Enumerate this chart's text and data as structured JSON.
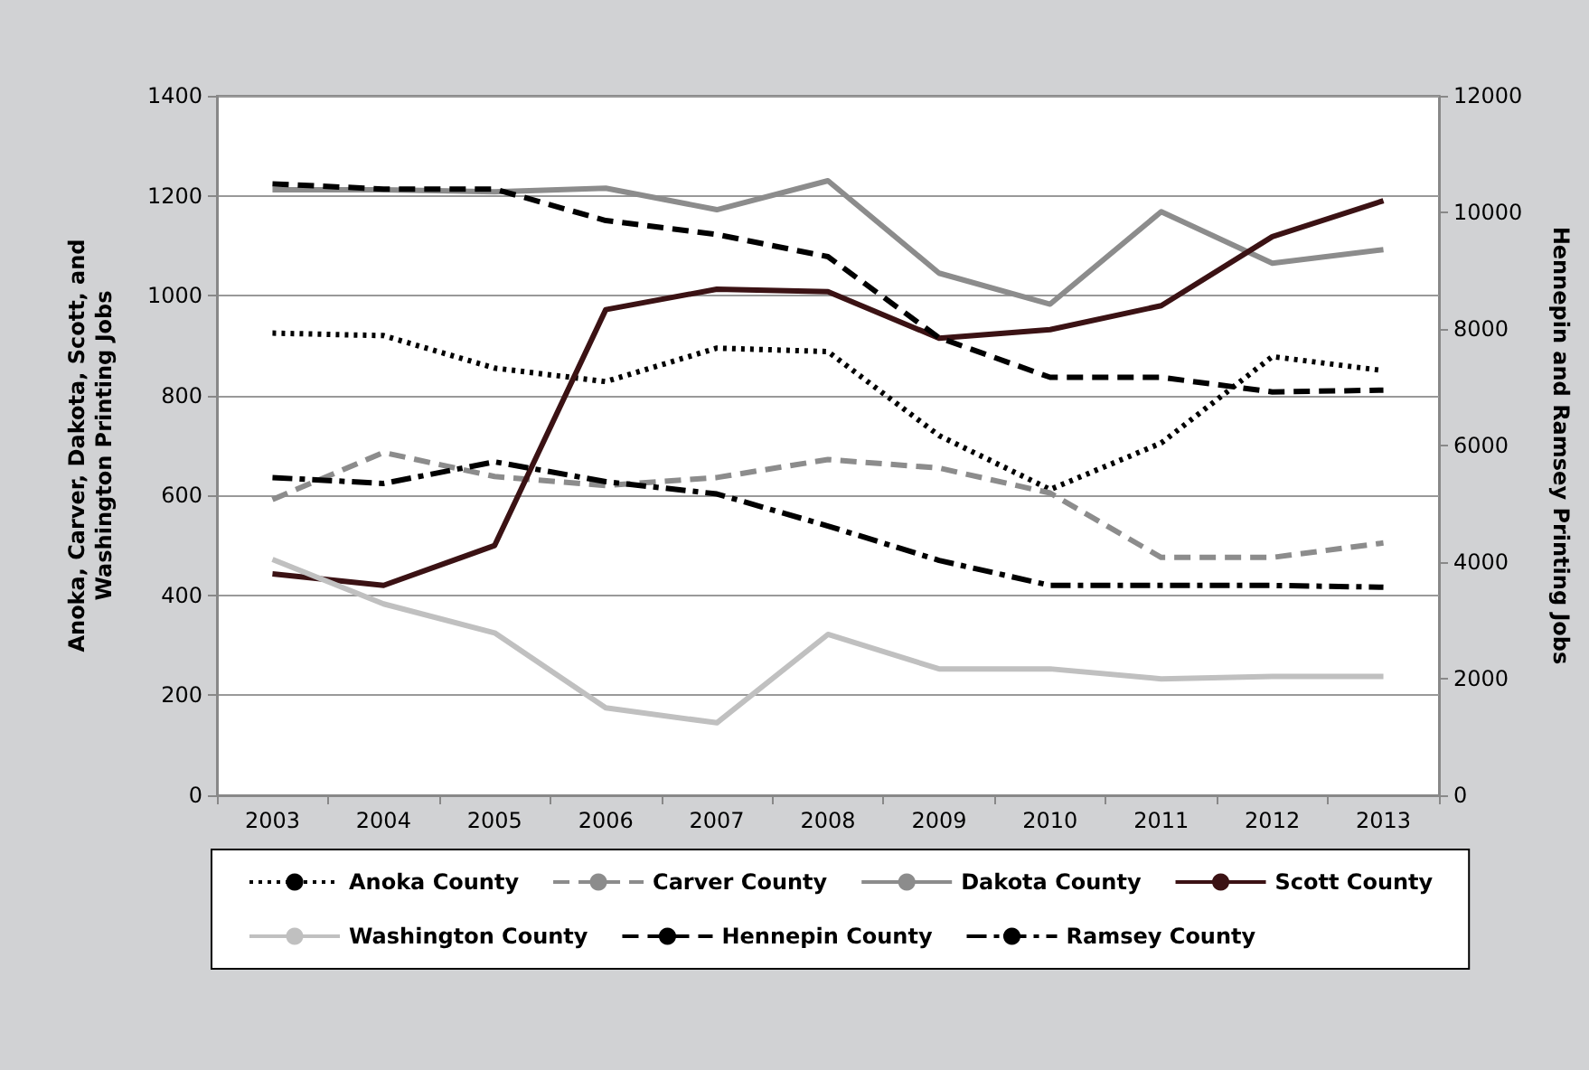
{
  "chart_data": {
    "type": "line",
    "ylabel": "Anoka, Carver, Dakota, Scott, and\nWashington Printing Jobs",
    "y2label": "Hennepin and Ramsey Printing Jobs",
    "categories": [
      "2003",
      "2004",
      "2005",
      "2006",
      "2007",
      "2008",
      "2009",
      "2010",
      "2011",
      "2012",
      "2013"
    ],
    "series": [
      {
        "name": "Anoka County",
        "color": "#000000",
        "line_style": "dotted",
        "values": [
          925,
          920,
          855,
          828,
          895,
          888,
          720,
          612,
          705,
          878,
          850
        ]
      },
      {
        "name": "Carver County",
        "color": "#8c8c8c",
        "line_style": "dashed",
        "values": [
          592,
          686,
          638,
          620,
          636,
          672,
          655,
          605,
          476,
          476,
          505
        ]
      },
      {
        "name": "Dakota County",
        "color": "#8c8c8c",
        "line_style": "solid",
        "values": [
          1212,
          1212,
          1208,
          1215,
          1172,
          1230,
          1045,
          983,
          1168,
          1065,
          1092
        ]
      },
      {
        "name": "Scott County",
        "color": "#3b1214",
        "line_style": "solid",
        "values": [
          443,
          420,
          500,
          972,
          1013,
          1008,
          915,
          932,
          980,
          1118,
          1190
        ]
      },
      {
        "name": "Washington County",
        "color": "#c0c0c0",
        "line_style": "solid",
        "values": [
          472,
          383,
          325,
          175,
          145,
          322,
          253,
          253,
          233,
          238,
          238
        ]
      },
      {
        "name": "Hennepin County",
        "color": "#000000",
        "line_style": "dashed",
        "axis": "y2",
        "values": [
          10490,
          10400,
          10400,
          9860,
          9620,
          9240,
          7850,
          7170,
          7170,
          6920,
          6950
        ]
      },
      {
        "name": "Ramsey County",
        "color": "#000000",
        "line_style": "dashdot",
        "axis": "y2",
        "values": [
          5450,
          5350,
          5720,
          5380,
          5170,
          4620,
          4030,
          3600,
          3600,
          3600,
          3570
        ]
      }
    ],
    "ylim": [
      0,
      1400
    ],
    "yticks": [
      0,
      200,
      400,
      600,
      800,
      1000,
      1200,
      1400
    ],
    "y2lim": [
      0,
      12000
    ],
    "y2ticks": [
      0,
      2000,
      4000,
      6000,
      8000,
      10000,
      12000
    ],
    "grid": "y",
    "legend": "bottom",
    "marker": "none"
  }
}
